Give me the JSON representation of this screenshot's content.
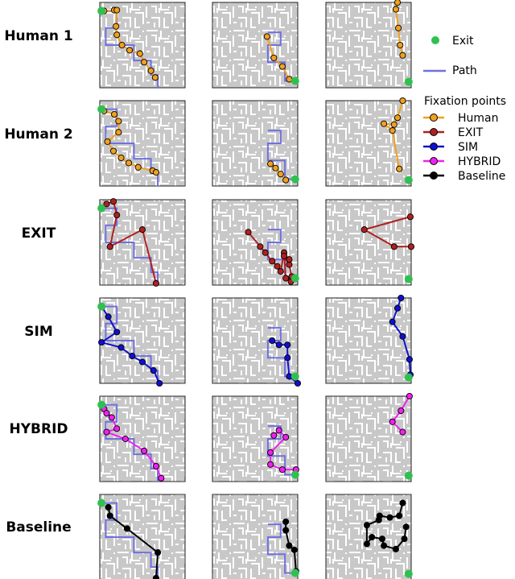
{
  "rows": [
    {
      "label": "Human 1",
      "method": "human"
    },
    {
      "label": "Human 2",
      "method": "human"
    },
    {
      "label": "EXIT",
      "method": "exit"
    },
    {
      "label": "SIM",
      "method": "sim"
    },
    {
      "label": "HYBRID",
      "method": "hybrid"
    },
    {
      "label": "Baseline",
      "method": "baseline"
    }
  ],
  "legend": {
    "exit_label": "Exit",
    "path_label": "Path",
    "fixation_title": "Fixation points",
    "items": [
      {
        "label": "Human",
        "method": "human"
      },
      {
        "label": "EXIT",
        "method": "exit"
      },
      {
        "label": "SIM",
        "method": "sim"
      },
      {
        "label": "HYBRID",
        "method": "hybrid"
      },
      {
        "label": "Baseline",
        "method": "baseline"
      }
    ]
  },
  "colors": {
    "human": "#f0a020",
    "exit": "#b02020",
    "sim": "#1010d0",
    "hybrid": "#f020f0",
    "baseline": "#000000",
    "path": "#7070e0",
    "exit_marker": "#30c050",
    "maze_bg": "#c8c8c8",
    "maze_wall": "#ffffff"
  },
  "mazes": [
    {
      "exit": [
        0.02,
        0.1
      ],
      "path": [
        [
          0.0,
          0.1
        ],
        [
          0.2,
          0.1
        ],
        [
          0.2,
          0.3
        ],
        [
          0.07,
          0.3
        ],
        [
          0.07,
          0.5
        ],
        [
          0.4,
          0.5
        ],
        [
          0.4,
          0.68
        ],
        [
          0.6,
          0.68
        ],
        [
          0.6,
          0.85
        ],
        [
          0.68,
          0.85
        ],
        [
          0.68,
          1.0
        ]
      ]
    },
    {
      "exit": [
        0.97,
        0.92
      ],
      "path": [
        [
          0.65,
          0.35
        ],
        [
          0.8,
          0.35
        ],
        [
          0.8,
          0.5
        ],
        [
          0.65,
          0.5
        ],
        [
          0.65,
          0.7
        ],
        [
          0.85,
          0.7
        ],
        [
          0.85,
          0.92
        ],
        [
          1.0,
          0.92
        ]
      ]
    },
    {
      "exit": [
        0.97,
        0.93
      ],
      "path": []
    }
  ],
  "fixations": [
    [
      [
        [
          0.05,
          0.1
        ],
        [
          0.17,
          0.09
        ],
        [
          0.2,
          0.09
        ],
        [
          0.19,
          0.28
        ],
        [
          0.2,
          0.38
        ],
        [
          0.26,
          0.5
        ],
        [
          0.35,
          0.56
        ],
        [
          0.47,
          0.6
        ],
        [
          0.52,
          0.7
        ],
        [
          0.6,
          0.8
        ],
        [
          0.65,
          0.88
        ]
      ],
      [
        [
          0.64,
          0.4
        ],
        [
          0.72,
          0.65
        ],
        [
          0.82,
          0.75
        ],
        [
          0.9,
          0.9
        ]
      ],
      [
        [
          0.84,
          0.0
        ],
        [
          0.82,
          0.08
        ],
        [
          0.85,
          0.3
        ],
        [
          0.87,
          0.5
        ],
        [
          0.9,
          0.62
        ]
      ]
    ],
    [
      [
        [
          0.05,
          0.12
        ],
        [
          0.17,
          0.16
        ],
        [
          0.22,
          0.24
        ],
        [
          0.22,
          0.37
        ],
        [
          0.09,
          0.48
        ],
        [
          0.16,
          0.59
        ],
        [
          0.25,
          0.67
        ],
        [
          0.34,
          0.73
        ],
        [
          0.45,
          0.78
        ],
        [
          0.62,
          0.82
        ],
        [
          0.66,
          0.84
        ]
      ],
      [
        [
          0.68,
          0.74
        ],
        [
          0.74,
          0.79
        ],
        [
          0.8,
          0.86
        ],
        [
          0.86,
          0.93
        ]
      ],
      [
        [
          0.9,
          0.0
        ],
        [
          0.84,
          0.2
        ],
        [
          0.8,
          0.28
        ],
        [
          0.68,
          0.27
        ],
        [
          0.78,
          0.35
        ],
        [
          0.86,
          0.8
        ]
      ]
    ],
    [
      [
        [
          0.08,
          0.05
        ],
        [
          0.16,
          0.02
        ],
        [
          0.2,
          0.18
        ],
        [
          0.12,
          0.55
        ],
        [
          0.5,
          0.35
        ],
        [
          0.66,
          0.98
        ]
      ],
      [
        [
          0.42,
          0.38
        ],
        [
          0.56,
          0.55
        ],
        [
          0.62,
          0.62
        ],
        [
          0.7,
          0.72
        ],
        [
          0.76,
          0.78
        ],
        [
          0.8,
          0.84
        ],
        [
          0.84,
          0.62
        ],
        [
          0.86,
          0.92
        ],
        [
          0.92,
          0.96
        ],
        [
          0.93,
          0.9
        ],
        [
          0.9,
          0.76
        ],
        [
          0.84,
          0.66
        ],
        [
          0.9,
          0.7
        ]
      ],
      [
        [
          0.99,
          0.2
        ],
        [
          0.45,
          0.35
        ],
        [
          0.8,
          0.55
        ],
        [
          1.0,
          0.55
        ]
      ]
    ],
    [
      [
        [
          0.02,
          0.1
        ],
        [
          0.1,
          0.22
        ],
        [
          0.2,
          0.4
        ],
        [
          0.02,
          0.52
        ],
        [
          0.25,
          0.58
        ],
        [
          0.38,
          0.68
        ],
        [
          0.5,
          0.75
        ],
        [
          0.63,
          0.85
        ],
        [
          0.7,
          1.0
        ]
      ],
      [
        [
          0.7,
          0.5
        ],
        [
          0.78,
          0.55
        ],
        [
          0.88,
          0.55
        ],
        [
          0.88,
          0.7
        ],
        [
          0.9,
          0.92
        ],
        [
          1.0,
          1.0
        ]
      ],
      [
        [
          0.88,
          0.0
        ],
        [
          0.84,
          0.12
        ],
        [
          0.78,
          0.28
        ],
        [
          0.9,
          0.45
        ],
        [
          0.98,
          0.72
        ],
        [
          0.99,
          0.9
        ]
      ]
    ],
    [
      [
        [
          0.05,
          0.15
        ],
        [
          0.08,
          0.2
        ],
        [
          0.14,
          0.25
        ],
        [
          0.2,
          0.38
        ],
        [
          0.08,
          0.42
        ],
        [
          0.3,
          0.5
        ],
        [
          0.52,
          0.64
        ],
        [
          0.66,
          0.82
        ],
        [
          0.72,
          0.96
        ]
      ],
      [
        [
          0.72,
          0.46
        ],
        [
          0.78,
          0.4
        ],
        [
          0.86,
          0.48
        ],
        [
          0.68,
          0.66
        ],
        [
          0.68,
          0.8
        ],
        [
          0.82,
          0.86
        ],
        [
          0.98,
          0.86
        ]
      ],
      [
        [
          0.98,
          0.0
        ],
        [
          0.88,
          0.17
        ],
        [
          0.78,
          0.3
        ],
        [
          0.9,
          0.42
        ]
      ]
    ],
    [
      [
        [
          0.1,
          0.15
        ],
        [
          0.12,
          0.25
        ],
        [
          0.32,
          0.4
        ],
        [
          0.68,
          0.68
        ],
        [
          0.66,
          0.98
        ]
      ],
      [
        [
          0.86,
          0.32
        ],
        [
          0.86,
          0.42
        ],
        [
          0.9,
          0.6
        ],
        [
          0.96,
          0.65
        ],
        [
          0.98,
          0.9
        ]
      ],
      [
        [
          0.9,
          0.1
        ],
        [
          0.86,
          0.25
        ],
        [
          0.75,
          0.27
        ],
        [
          0.63,
          0.25
        ],
        [
          0.62,
          0.3
        ],
        [
          0.48,
          0.36
        ],
        [
          0.48,
          0.58
        ],
        [
          0.54,
          0.5
        ],
        [
          0.66,
          0.52
        ],
        [
          0.68,
          0.6
        ],
        [
          0.82,
          0.64
        ],
        [
          0.92,
          0.52
        ],
        [
          0.94,
          0.38
        ]
      ]
    ]
  ]
}
